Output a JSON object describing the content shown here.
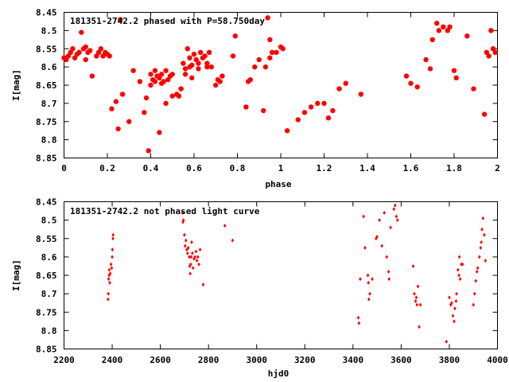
{
  "chart_data": [
    {
      "type": "scatter",
      "title": "181351-2742.2 phased with P=58.750day",
      "xlabel": "phase",
      "ylabel": "I[mag]",
      "xlim": [
        0,
        2
      ],
      "ylim": [
        8.45,
        8.85
      ],
      "y_inverted": true,
      "grid": false,
      "marker_color": "#ff0000",
      "marker": "filled-circle",
      "xticks": [
        0,
        0.2,
        0.4,
        0.6,
        0.8,
        1,
        1.2,
        1.4,
        1.6,
        1.8,
        2
      ],
      "xtick_labels": [
        "0",
        "0.2",
        "0.4",
        "0.6",
        "0.8",
        "1",
        "1.2",
        "1.4",
        "1.6",
        "1.8",
        "2"
      ],
      "yticks": [
        8.45,
        8.5,
        8.55,
        8.6,
        8.65,
        8.7,
        8.75,
        8.8,
        8.85
      ],
      "ytick_labels": [
        "8.45",
        "8.5",
        "8.55",
        "8.6",
        "8.65",
        "8.7",
        "8.75",
        "8.8",
        "8.85"
      ],
      "points": [
        [
          0.0,
          8.575
        ],
        [
          0.01,
          8.58
        ],
        [
          0.02,
          8.57
        ],
        [
          0.03,
          8.56
        ],
        [
          0.04,
          8.55
        ],
        [
          0.05,
          8.575
        ],
        [
          0.06,
          8.565
        ],
        [
          0.07,
          8.56
        ],
        [
          0.08,
          8.505
        ],
        [
          0.09,
          8.55
        ],
        [
          0.1,
          8.545
        ],
        [
          0.1,
          8.58
        ],
        [
          0.11,
          8.56
        ],
        [
          0.12,
          8.555
        ],
        [
          0.13,
          8.625
        ],
        [
          0.15,
          8.57
        ],
        [
          0.16,
          8.56
        ],
        [
          0.17,
          8.55
        ],
        [
          0.18,
          8.57
        ],
        [
          0.19,
          8.56
        ],
        [
          0.2,
          8.565
        ],
        [
          0.21,
          8.57
        ],
        [
          0.22,
          8.715
        ],
        [
          0.24,
          8.695
        ],
        [
          0.25,
          8.77
        ],
        [
          0.26,
          8.47
        ],
        [
          0.27,
          8.675
        ],
        [
          0.3,
          8.75
        ],
        [
          0.32,
          8.61
        ],
        [
          0.35,
          8.64
        ],
        [
          0.37,
          8.725
        ],
        [
          0.38,
          8.685
        ],
        [
          0.39,
          8.83
        ],
        [
          0.4,
          8.62
        ],
        [
          0.4,
          8.65
        ],
        [
          0.41,
          8.635
        ],
        [
          0.42,
          8.61
        ],
        [
          0.42,
          8.64
        ],
        [
          0.43,
          8.625
        ],
        [
          0.44,
          8.63
        ],
        [
          0.44,
          8.78
        ],
        [
          0.45,
          8.62
        ],
        [
          0.45,
          8.645
        ],
        [
          0.46,
          8.64
        ],
        [
          0.47,
          8.61
        ],
        [
          0.47,
          8.7
        ],
        [
          0.48,
          8.635
        ],
        [
          0.49,
          8.625
        ],
        [
          0.5,
          8.62
        ],
        [
          0.5,
          8.68
        ],
        [
          0.52,
          8.675
        ],
        [
          0.53,
          8.68
        ],
        [
          0.54,
          8.66
        ],
        [
          0.55,
          8.59
        ],
        [
          0.56,
          8.605
        ],
        [
          0.56,
          8.62
        ],
        [
          0.57,
          8.55
        ],
        [
          0.58,
          8.575
        ],
        [
          0.58,
          8.6
        ],
        [
          0.59,
          8.595
        ],
        [
          0.59,
          8.63
        ],
        [
          0.6,
          8.565
        ],
        [
          0.61,
          8.58
        ],
        [
          0.62,
          8.59
        ],
        [
          0.62,
          8.605
        ],
        [
          0.63,
          8.56
        ],
        [
          0.64,
          8.575
        ],
        [
          0.65,
          8.57
        ],
        [
          0.66,
          8.59
        ],
        [
          0.66,
          8.6
        ],
        [
          0.67,
          8.56
        ],
        [
          0.68,
          8.6
        ],
        [
          0.7,
          8.65
        ],
        [
          0.71,
          8.635
        ],
        [
          0.72,
          8.64
        ],
        [
          0.73,
          8.625
        ],
        [
          0.78,
          8.57
        ],
        [
          0.79,
          8.515
        ],
        [
          0.84,
          8.71
        ],
        [
          0.85,
          8.64
        ],
        [
          0.86,
          8.635
        ],
        [
          0.88,
          8.6
        ],
        [
          0.9,
          8.58
        ],
        [
          0.92,
          8.72
        ],
        [
          0.93,
          8.6
        ],
        [
          0.94,
          8.465
        ],
        [
          0.95,
          8.525
        ],
        [
          0.95,
          8.575
        ],
        [
          0.96,
          8.56
        ],
        [
          0.98,
          8.56
        ],
        [
          1.0,
          8.545
        ],
        [
          1.01,
          8.55
        ],
        [
          1.03,
          8.775
        ],
        [
          1.08,
          8.745
        ],
        [
          1.11,
          8.725
        ],
        [
          1.14,
          8.71
        ],
        [
          1.17,
          8.7
        ],
        [
          1.2,
          8.7
        ],
        [
          1.22,
          8.74
        ],
        [
          1.24,
          8.72
        ],
        [
          1.27,
          8.66
        ],
        [
          1.3,
          8.645
        ],
        [
          1.37,
          8.675
        ],
        [
          1.58,
          8.625
        ],
        [
          1.6,
          8.645
        ],
        [
          1.63,
          8.655
        ],
        [
          1.67,
          8.58
        ],
        [
          1.69,
          8.605
        ],
        [
          1.7,
          8.525
        ],
        [
          1.72,
          8.48
        ],
        [
          1.73,
          8.5
        ],
        [
          1.75,
          8.49
        ],
        [
          1.77,
          8.5
        ],
        [
          1.78,
          8.49
        ],
        [
          1.8,
          8.61
        ],
        [
          1.81,
          8.63
        ],
        [
          1.86,
          8.515
        ],
        [
          1.89,
          8.66
        ],
        [
          1.94,
          8.73
        ],
        [
          1.95,
          8.56
        ],
        [
          1.96,
          8.57
        ],
        [
          1.97,
          8.5
        ],
        [
          1.98,
          8.55
        ],
        [
          1.99,
          8.56
        ]
      ]
    },
    {
      "type": "scatter",
      "title": "181351-2742.2 not phased light curve",
      "xlabel": "hjd0",
      "ylabel": "I[mag]",
      "xlim": [
        2200,
        4000
      ],
      "ylim": [
        8.45,
        8.85
      ],
      "y_inverted": true,
      "grid": false,
      "marker_color": "#ff0000",
      "marker": "small-diamond",
      "xticks": [
        2200,
        2400,
        2600,
        2800,
        3000,
        3200,
        3400,
        3600,
        3800,
        4000
      ],
      "xtick_labels": [
        "2200",
        "2400",
        "2600",
        "2800",
        "3000",
        "3200",
        "3400",
        "3600",
        "3800",
        "4000"
      ],
      "yticks": [
        8.45,
        8.5,
        8.55,
        8.6,
        8.65,
        8.7,
        8.75,
        8.8,
        8.85
      ],
      "ytick_labels": [
        "8.45",
        "8.5",
        "8.55",
        "8.6",
        "8.65",
        "8.7",
        "8.75",
        "8.8",
        "8.85"
      ],
      "points": [
        [
          2383,
          8.715
        ],
        [
          2384,
          8.7
        ],
        [
          2385,
          8.66
        ],
        [
          2387,
          8.65
        ],
        [
          2388,
          8.635
        ],
        [
          2390,
          8.67
        ],
        [
          2392,
          8.645
        ],
        [
          2395,
          8.62
        ],
        [
          2398,
          8.63
        ],
        [
          2400,
          8.6
        ],
        [
          2401,
          8.58
        ],
        [
          2403,
          8.55
        ],
        [
          2404,
          8.54
        ],
        [
          2692,
          8.48
        ],
        [
          2694,
          8.505
        ],
        [
          2696,
          8.5
        ],
        [
          2700,
          8.54
        ],
        [
          2703,
          8.57
        ],
        [
          2706,
          8.555
        ],
        [
          2710,
          8.58
        ],
        [
          2713,
          8.59
        ],
        [
          2716,
          8.575
        ],
        [
          2720,
          8.6
        ],
        [
          2722,
          8.625
        ],
        [
          2724,
          8.645
        ],
        [
          2726,
          8.62
        ],
        [
          2728,
          8.6
        ],
        [
          2730,
          8.56
        ],
        [
          2733,
          8.59
        ],
        [
          2736,
          8.63
        ],
        [
          2740,
          8.605
        ],
        [
          2744,
          8.6
        ],
        [
          2748,
          8.585
        ],
        [
          2752,
          8.61
        ],
        [
          2756,
          8.6
        ],
        [
          2760,
          8.62
        ],
        [
          2765,
          8.58
        ],
        [
          2778,
          8.675
        ],
        [
          2868,
          8.515
        ],
        [
          2900,
          8.555
        ],
        [
          3422,
          8.765
        ],
        [
          3425,
          8.78
        ],
        [
          3430,
          8.66
        ],
        [
          3444,
          8.49
        ],
        [
          3450,
          8.575
        ],
        [
          3462,
          8.65
        ],
        [
          3464,
          8.67
        ],
        [
          3466,
          8.715
        ],
        [
          3470,
          8.7
        ],
        [
          3480,
          8.66
        ],
        [
          3496,
          8.55
        ],
        [
          3500,
          8.545
        ],
        [
          3510,
          8.5
        ],
        [
          3520,
          8.57
        ],
        [
          3530,
          8.48
        ],
        [
          3540,
          8.6
        ],
        [
          3548,
          8.64
        ],
        [
          3550,
          8.66
        ],
        [
          3556,
          8.52
        ],
        [
          3570,
          8.47
        ],
        [
          3575,
          8.46
        ],
        [
          3580,
          8.49
        ],
        [
          3585,
          8.5
        ],
        [
          3650,
          8.625
        ],
        [
          3655,
          8.7
        ],
        [
          3660,
          8.72
        ],
        [
          3663,
          8.71
        ],
        [
          3666,
          8.73
        ],
        [
          3670,
          8.68
        ],
        [
          3675,
          8.79
        ],
        [
          3680,
          8.73
        ],
        [
          3788,
          8.83
        ],
        [
          3800,
          8.71
        ],
        [
          3806,
          8.73
        ],
        [
          3810,
          8.725
        ],
        [
          3815,
          8.76
        ],
        [
          3820,
          8.775
        ],
        [
          3823,
          8.74
        ],
        [
          3828,
          8.72
        ],
        [
          3830,
          8.7
        ],
        [
          3836,
          8.635
        ],
        [
          3840,
          8.65
        ],
        [
          3842,
          8.6
        ],
        [
          3845,
          8.66
        ],
        [
          3850,
          8.62
        ],
        [
          3855,
          8.62
        ],
        [
          3900,
          8.73
        ],
        [
          3905,
          8.7
        ],
        [
          3910,
          8.665
        ],
        [
          3915,
          8.64
        ],
        [
          3918,
          8.63
        ],
        [
          3925,
          8.6
        ],
        [
          3930,
          8.575
        ],
        [
          3933,
          8.56
        ],
        [
          3936,
          8.525
        ],
        [
          3940,
          8.495
        ],
        [
          3945,
          8.54
        ],
        [
          3950,
          8.61
        ]
      ]
    }
  ]
}
